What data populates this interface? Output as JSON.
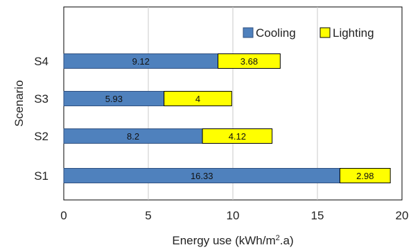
{
  "chart_data": {
    "type": "bar",
    "orientation": "horizontal",
    "stacked": true,
    "categories": [
      "S1",
      "S2",
      "S3",
      "S4"
    ],
    "series": [
      {
        "name": "Cooling",
        "values": [
          16.33,
          8.2,
          5.93,
          9.12
        ],
        "color": "#4f81bd"
      },
      {
        "name": "Lighting",
        "values": [
          2.98,
          4.12,
          4,
          3.68
        ],
        "color": "#ffff00"
      }
    ],
    "data_labels": [
      [
        "16.33",
        "8.2",
        "5.93",
        "9.12"
      ],
      [
        "2.98",
        "4.12",
        "4",
        "3.68"
      ]
    ],
    "xlim": [
      0,
      20
    ],
    "x_ticks": [
      "0",
      "5",
      "10",
      "15",
      "20"
    ],
    "xlabel_main": "Energy use (kWh/m",
    "xlabel_sup": "2",
    "xlabel_tail": ".a)",
    "ylabel": "Scenario",
    "grid": "vertical gridlines",
    "legend_position": "top-right",
    "bar_border_color": "#2f4f7f",
    "frame_color": "#000000",
    "grid_color": "#c8c8c8"
  }
}
